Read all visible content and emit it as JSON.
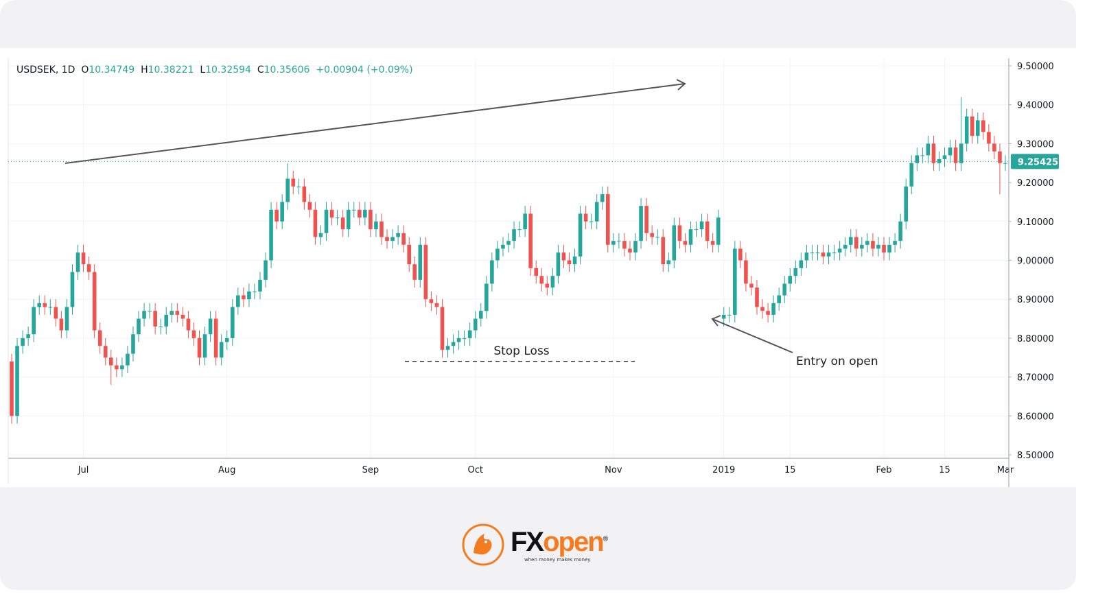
{
  "chart_data": {
    "type": "candlestick",
    "legend_header": {
      "symbol": "USDSEK, 1D",
      "open_label": "O",
      "open": "10.34749",
      "high_label": "H",
      "high": "10.38221",
      "low_label": "L",
      "low": "10.32594",
      "close_label": "C",
      "close": "10.35606",
      "change": "+0.00904 (+0.09%)"
    },
    "up_color": "#26a69a",
    "down_color": "#ef5350",
    "grid": true,
    "ylim": [
      8.5,
      9.5
    ],
    "yticks": [
      {
        "value": 8.5,
        "label": "8.50000"
      },
      {
        "value": 8.6,
        "label": "8.60000"
      },
      {
        "value": 8.7,
        "label": "8.70000"
      },
      {
        "value": 8.8,
        "label": "8.80000"
      },
      {
        "value": 8.9,
        "label": "8.90000"
      },
      {
        "value": 9.0,
        "label": "9.00000"
      },
      {
        "value": 9.1,
        "label": "9.10000"
      },
      {
        "value": 9.2,
        "label": "9.20000"
      },
      {
        "value": 9.3,
        "label": "9.30000"
      },
      {
        "value": 9.4,
        "label": "9.40000"
      },
      {
        "value": 9.5,
        "label": "9.50000"
      }
    ],
    "last_price": 9.25425,
    "annotations": {
      "stop_loss": {
        "label": "Stop Loss",
        "value": 8.74
      },
      "entry": "Entry on open"
    },
    "categories": [
      null,
      null,
      null,
      null,
      null,
      null,
      null,
      null,
      null,
      null,
      null,
      null,
      null,
      "Jul",
      null,
      null,
      null,
      null,
      null,
      null,
      null,
      null,
      null,
      null,
      null,
      null,
      null,
      null,
      null,
      null,
      null,
      null,
      null,
      null,
      null,
      null,
      null,
      null,
      null,
      "Aug",
      null,
      null,
      null,
      null,
      null,
      null,
      null,
      null,
      null,
      null,
      null,
      null,
      null,
      null,
      null,
      null,
      null,
      null,
      null,
      null,
      null,
      null,
      null,
      null,
      null,
      "Sep",
      null,
      null,
      null,
      null,
      null,
      null,
      null,
      null,
      null,
      null,
      null,
      null,
      null,
      null,
      null,
      null,
      null,
      null,
      "Oct",
      null,
      null,
      null,
      null,
      null,
      null,
      null,
      null,
      null,
      null,
      null,
      null,
      null,
      null,
      null,
      null,
      null,
      null,
      null,
      null,
      null,
      null,
      null,
      null,
      "Nov",
      null,
      null,
      null,
      null,
      null,
      null,
      null,
      null,
      null,
      null,
      null,
      null,
      null,
      null,
      null,
      null,
      null,
      null,
      null,
      "2019",
      null,
      null,
      null,
      null,
      null,
      null,
      null,
      null,
      null,
      null,
      null,
      "15",
      null,
      null,
      null,
      null,
      null,
      null,
      null,
      null,
      null,
      null,
      null,
      null,
      null,
      null,
      null,
      null,
      "Feb",
      null,
      null,
      null,
      null,
      null,
      null,
      null,
      null,
      null,
      null,
      "15",
      null,
      null,
      null,
      null,
      null,
      null,
      null,
      null,
      null,
      null,
      "Mar"
    ],
    "open": [
      8.74,
      8.6,
      8.78,
      8.8,
      8.81,
      8.88,
      8.89,
      8.88,
      8.88,
      8.85,
      8.82,
      8.88,
      8.97,
      9.02,
      8.99,
      8.97,
      8.82,
      8.78,
      8.75,
      8.73,
      8.72,
      8.73,
      8.76,
      8.81,
      8.85,
      8.87,
      8.87,
      8.83,
      8.83,
      8.86,
      8.87,
      8.86,
      8.85,
      8.82,
      8.8,
      8.75,
      8.81,
      8.85,
      8.75,
      8.79,
      8.8,
      8.88,
      8.91,
      8.9,
      8.92,
      8.92,
      8.95,
      9.0,
      9.13,
      9.1,
      9.15,
      9.21,
      9.19,
      9.19,
      9.15,
      9.13,
      9.06,
      9.07,
      9.13,
      9.11,
      9.11,
      9.08,
      9.13,
      9.13,
      9.11,
      9.13,
      9.08,
      9.1,
      9.06,
      9.05,
      9.06,
      9.07,
      9.04,
      8.99,
      8.95,
      9.04,
      8.9,
      8.89,
      8.88,
      8.77,
      8.78,
      8.79,
      8.8,
      8.8,
      8.82,
      8.85,
      8.87,
      8.94,
      9.0,
      9.03,
      9.04,
      9.05,
      9.08,
      9.08,
      9.12,
      8.98,
      8.96,
      8.94,
      8.93,
      8.96,
      9.02,
      9.0,
      8.99,
      9.01,
      9.12,
      9.1,
      9.1,
      9.15,
      9.17,
      9.04,
      9.05,
      9.05,
      9.03,
      9.02,
      9.05,
      9.14,
      9.07,
      9.06,
      9.06,
      8.99,
      9.0,
      9.09,
      9.05,
      9.04,
      9.08,
      9.08,
      9.1,
      9.05,
      9.04,
      8.85,
      8.86,
      8.86,
      9.03,
      9.0,
      8.94,
      8.93,
      8.88,
      8.87,
      8.86,
      8.89,
      8.91,
      8.94,
      8.96,
      8.98,
      9.0,
      9.02,
      9.02,
      9.02,
      9.01,
      9.02,
      9.02,
      9.03,
      9.04,
      9.06,
      9.03,
      9.04,
      9.05,
      9.03,
      9.04,
      9.02,
      9.04,
      9.05,
      9.1,
      9.19,
      9.25,
      9.27,
      9.27,
      9.3,
      9.25,
      9.26,
      9.27,
      9.29,
      9.25,
      9.3,
      9.37,
      9.32,
      9.36,
      9.33,
      9.3,
      9.28,
      9.25
    ],
    "high": [
      8.76,
      8.8,
      8.82,
      8.83,
      8.9,
      8.91,
      8.91,
      8.9,
      8.9,
      8.87,
      8.9,
      8.99,
      9.04,
      9.04,
      9.01,
      8.99,
      8.84,
      8.8,
      8.77,
      8.75,
      8.75,
      8.78,
      8.83,
      8.87,
      8.89,
      8.89,
      8.89,
      8.85,
      8.88,
      8.89,
      8.89,
      8.88,
      8.87,
      8.84,
      8.82,
      8.83,
      8.87,
      8.87,
      8.81,
      8.82,
      8.9,
      8.93,
      8.93,
      8.94,
      8.94,
      8.97,
      9.02,
      9.15,
      9.15,
      9.17,
      9.25,
      9.23,
      9.21,
      9.21,
      9.17,
      9.15,
      9.09,
      9.15,
      9.15,
      9.13,
      9.13,
      9.15,
      9.15,
      9.15,
      9.15,
      9.15,
      9.12,
      9.12,
      9.08,
      9.08,
      9.09,
      9.09,
      9.06,
      9.01,
      9.06,
      9.06,
      8.92,
      8.91,
      8.9,
      8.8,
      8.81,
      8.82,
      8.82,
      8.84,
      8.87,
      8.89,
      8.96,
      9.02,
      9.05,
      9.06,
      9.07,
      9.1,
      9.1,
      9.14,
      9.14,
      9.0,
      8.98,
      8.96,
      8.98,
      9.04,
      9.04,
      9.02,
      9.03,
      9.14,
      9.14,
      9.12,
      9.17,
      9.19,
      9.19,
      9.07,
      9.07,
      9.07,
      9.05,
      9.07,
      9.16,
      9.16,
      9.09,
      9.08,
      9.08,
      9.02,
      9.11,
      9.11,
      9.07,
      9.1,
      9.1,
      9.12,
      9.12,
      9.07,
      9.13,
      8.88,
      8.88,
      9.05,
      9.05,
      9.02,
      8.96,
      8.95,
      8.9,
      8.89,
      8.91,
      8.93,
      8.96,
      8.98,
      9.0,
      9.02,
      9.04,
      9.04,
      9.04,
      9.04,
      9.04,
      9.04,
      9.05,
      9.06,
      9.08,
      9.08,
      9.06,
      9.07,
      9.07,
      9.06,
      9.06,
      9.06,
      9.07,
      9.12,
      9.21,
      9.27,
      9.29,
      9.29,
      9.32,
      9.32,
      9.28,
      9.29,
      9.31,
      9.31,
      9.42,
      9.39,
      9.39,
      9.38,
      9.38,
      9.35,
      9.32,
      9.3,
      9.27
    ],
    "low": [
      8.58,
      8.58,
      8.76,
      8.78,
      8.79,
      8.86,
      8.86,
      8.86,
      8.83,
      8.8,
      8.8,
      8.86,
      8.95,
      8.97,
      8.95,
      8.8,
      8.76,
      8.73,
      8.68,
      8.7,
      8.7,
      8.71,
      8.74,
      8.79,
      8.83,
      8.85,
      8.81,
      8.81,
      8.81,
      8.84,
      8.84,
      8.83,
      8.8,
      8.78,
      8.73,
      8.73,
      8.79,
      8.73,
      8.73,
      8.77,
      8.78,
      8.86,
      8.88,
      8.88,
      8.9,
      8.9,
      8.93,
      8.98,
      9.08,
      9.08,
      9.13,
      9.17,
      9.17,
      9.13,
      9.11,
      9.04,
      9.04,
      9.05,
      9.09,
      9.09,
      9.06,
      9.06,
      9.11,
      9.09,
      9.09,
      9.06,
      9.06,
      9.04,
      9.03,
      9.03,
      9.04,
      9.02,
      8.97,
      8.93,
      8.93,
      8.88,
      8.87,
      8.86,
      8.75,
      8.75,
      8.76,
      8.77,
      8.78,
      8.78,
      8.8,
      8.83,
      8.85,
      8.92,
      8.98,
      9.01,
      9.02,
      9.03,
      9.06,
      9.06,
      8.96,
      8.94,
      8.92,
      8.91,
      8.91,
      8.94,
      8.98,
      8.97,
      8.97,
      8.99,
      9.08,
      9.08,
      9.08,
      9.13,
      9.02,
      9.02,
      9.03,
      9.01,
      9.0,
      9.0,
      9.03,
      9.05,
      9.04,
      9.04,
      8.97,
      8.97,
      8.98,
      9.03,
      9.02,
      9.02,
      9.06,
      9.06,
      9.03,
      9.02,
      9.02,
      8.83,
      8.84,
      8.84,
      8.98,
      8.92,
      8.91,
      8.86,
      8.85,
      8.84,
      8.84,
      8.87,
      8.89,
      8.92,
      8.94,
      8.96,
      8.98,
      9.0,
      9.0,
      8.99,
      8.99,
      9.0,
      9.0,
      9.01,
      9.02,
      9.01,
      9.01,
      9.02,
      9.01,
      9.01,
      9.0,
      9.0,
      9.02,
      9.03,
      9.08,
      9.17,
      9.23,
      9.25,
      9.25,
      9.23,
      9.23,
      9.24,
      9.25,
      9.23,
      9.23,
      9.28,
      9.3,
      9.3,
      9.31,
      9.28,
      9.26,
      9.17,
      9.23
    ],
    "close": [
      8.6,
      8.78,
      8.8,
      8.81,
      8.88,
      8.89,
      8.88,
      8.88,
      8.85,
      8.82,
      8.88,
      8.97,
      9.02,
      8.99,
      8.97,
      8.82,
      8.78,
      8.75,
      8.73,
      8.72,
      8.73,
      8.76,
      8.81,
      8.85,
      8.87,
      8.87,
      8.83,
      8.83,
      8.86,
      8.87,
      8.86,
      8.85,
      8.82,
      8.8,
      8.75,
      8.81,
      8.85,
      8.75,
      8.79,
      8.8,
      8.88,
      8.91,
      8.9,
      8.92,
      8.92,
      8.95,
      9.0,
      9.13,
      9.1,
      9.15,
      9.21,
      9.19,
      9.19,
      9.15,
      9.13,
      9.06,
      9.07,
      9.13,
      9.11,
      9.11,
      9.08,
      9.13,
      9.13,
      9.11,
      9.13,
      9.08,
      9.1,
      9.06,
      9.05,
      9.06,
      9.07,
      9.04,
      8.99,
      8.95,
      9.04,
      8.9,
      8.89,
      8.88,
      8.77,
      8.78,
      8.79,
      8.8,
      8.8,
      8.82,
      8.85,
      8.87,
      8.94,
      9.0,
      9.03,
      9.04,
      9.05,
      9.08,
      9.08,
      9.12,
      8.98,
      8.96,
      8.94,
      8.93,
      8.96,
      9.02,
      9.0,
      8.99,
      9.01,
      9.12,
      9.1,
      9.1,
      9.15,
      9.17,
      9.04,
      9.05,
      9.05,
      9.03,
      9.02,
      9.05,
      9.14,
      9.07,
      9.06,
      9.06,
      8.99,
      9.0,
      9.09,
      9.05,
      9.04,
      9.08,
      9.08,
      9.1,
      9.05,
      9.04,
      9.11,
      8.86,
      8.86,
      9.03,
      9.0,
      8.94,
      8.93,
      8.88,
      8.87,
      8.86,
      8.89,
      8.91,
      8.94,
      8.96,
      8.98,
      9.0,
      9.02,
      9.02,
      9.02,
      9.01,
      9.02,
      9.02,
      9.03,
      9.04,
      9.06,
      9.03,
      9.04,
      9.05,
      9.03,
      9.04,
      9.02,
      9.04,
      9.05,
      9.1,
      9.19,
      9.25,
      9.27,
      9.27,
      9.3,
      9.25,
      9.26,
      9.27,
      9.29,
      9.25,
      9.3,
      9.37,
      9.32,
      9.36,
      9.33,
      9.3,
      9.28,
      9.25,
      9.25
    ]
  },
  "footer": {
    "brand_fx": "FX",
    "brand_open": "open",
    "registered": "®",
    "tagline": "when money makes money"
  }
}
